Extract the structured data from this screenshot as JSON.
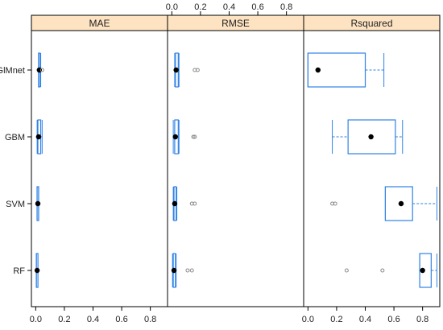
{
  "chart_data": {
    "type": "box",
    "layout": "lattice bwplot, three panels side by side with shared y categories",
    "models": [
      "RF",
      "SVM",
      "GBM",
      "GlMnet"
    ],
    "ticks": [
      "0.0",
      "0.2",
      "0.4",
      "0.6",
      "0.8"
    ],
    "tick_values": [
      0,
      0.2,
      0.4,
      0.6,
      0.8
    ],
    "xlim": [
      -0.03,
      0.92
    ],
    "tick_positions": {
      "MAE": "bottom",
      "RMSE": "top",
      "Rsquared": "bottom"
    },
    "colors": {
      "box": "#2f82e6",
      "median_dot": "#000000",
      "outlier": "#8a8a8a",
      "strip": "#fde3c2",
      "frame": "#000000"
    },
    "panels": [
      {
        "name": "MAE",
        "boxes": {
          "GlMnet": {
            "whisker_lo": 0.02,
            "q1": 0.02,
            "median": 0.025,
            "q3": 0.03,
            "whisker_hi": 0.035,
            "outliers": [
              0.045
            ]
          },
          "GBM": {
            "whisker_lo": 0.01,
            "q1": 0.015,
            "median": 0.02,
            "q3": 0.035,
            "whisker_hi": 0.045,
            "outliers": []
          },
          "SVM": {
            "whisker_lo": 0.01,
            "q1": 0.012,
            "median": 0.015,
            "q3": 0.018,
            "whisker_hi": 0.02,
            "outliers": []
          },
          "RF": {
            "whisker_lo": 0.005,
            "q1": 0.008,
            "median": 0.01,
            "q3": 0.012,
            "whisker_hi": 0.015,
            "outliers": []
          }
        }
      },
      {
        "name": "RMSE",
        "boxes": {
          "GlMnet": {
            "whisker_lo": 0.02,
            "q1": 0.025,
            "median": 0.03,
            "q3": 0.045,
            "whisker_hi": 0.05,
            "outliers": [
              0.16,
              0.18
            ]
          },
          "GBM": {
            "whisker_lo": 0.01,
            "q1": 0.02,
            "median": 0.025,
            "q3": 0.045,
            "whisker_hi": 0.05,
            "outliers": [
              0.15,
              0.16
            ]
          },
          "SVM": {
            "whisker_lo": 0.01,
            "q1": 0.015,
            "median": 0.02,
            "q3": 0.03,
            "whisker_hi": 0.035,
            "outliers": [
              0.14,
              0.16
            ]
          },
          "RF": {
            "whisker_lo": 0.005,
            "q1": 0.01,
            "median": 0.015,
            "q3": 0.025,
            "whisker_hi": 0.03,
            "outliers": [
              0.11,
              0.14
            ]
          }
        }
      },
      {
        "name": "Rsquared",
        "boxes": {
          "GlMnet": {
            "whisker_lo": 0.0,
            "q1": 0.0,
            "median": 0.07,
            "q3": 0.4,
            "whisker_hi": 0.53,
            "outliers": []
          },
          "GBM": {
            "whisker_lo": 0.17,
            "q1": 0.28,
            "median": 0.44,
            "q3": 0.61,
            "whisker_hi": 0.66,
            "outliers": []
          },
          "SVM": {
            "whisker_lo": 0.54,
            "q1": 0.54,
            "median": 0.65,
            "q3": 0.73,
            "whisker_hi": 0.9,
            "outliers": [
              0.17,
              0.19
            ]
          },
          "RF": {
            "whisker_lo": 0.78,
            "q1": 0.78,
            "median": 0.8,
            "q3": 0.86,
            "whisker_hi": 0.9,
            "outliers": [
              0.27,
              0.52
            ]
          }
        }
      }
    ]
  }
}
